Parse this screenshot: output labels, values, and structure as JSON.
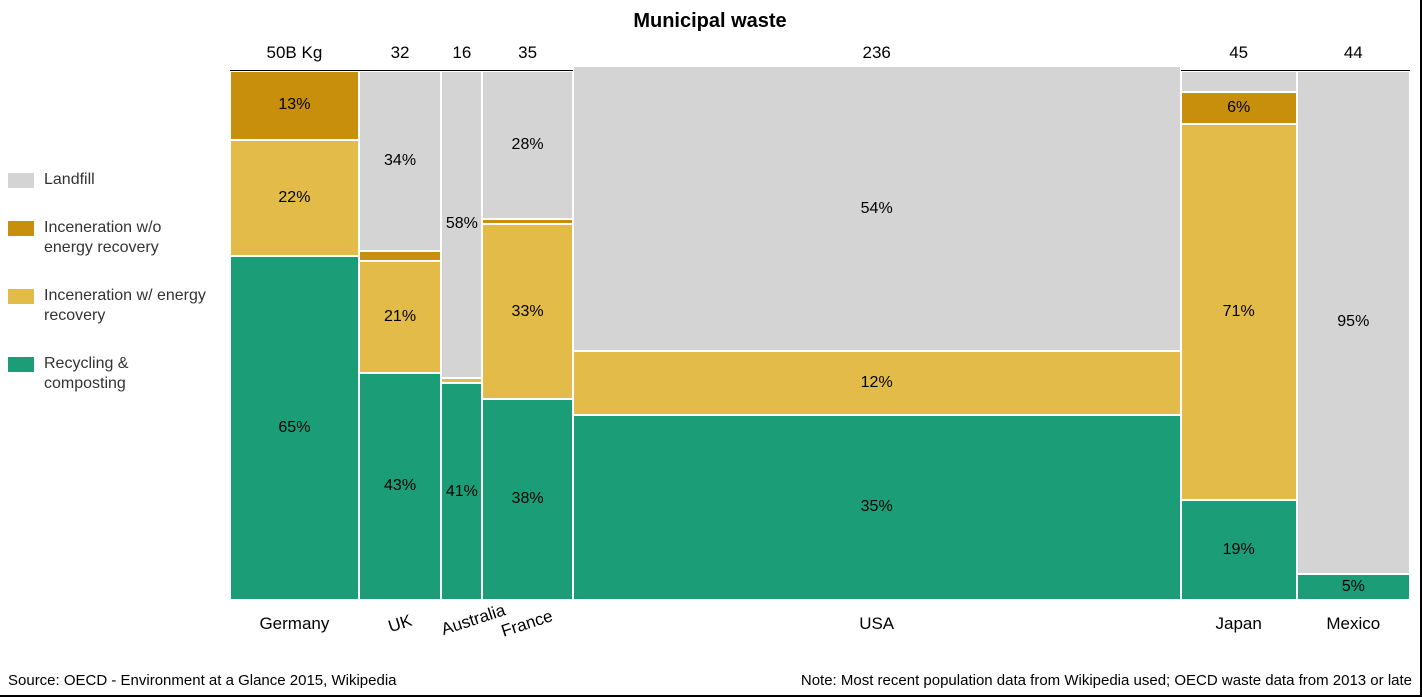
{
  "title": "Municipal waste",
  "colors": {
    "landfill": "#d4d4d4",
    "incin_no_recovery": "#c78f0c",
    "incin_recovery": "#e3bb48",
    "recycling": "#1b9e77",
    "text": "#000000",
    "background": "#ffffff"
  },
  "chart": {
    "type": "marimekko",
    "unit_label_first": "50B Kg",
    "total_width_value": 458,
    "segment_order_top_to_bottom": [
      "incin_no_recovery",
      "landfill",
      "incin_recovery",
      "recycling"
    ],
    "countries": [
      {
        "name": "Germany",
        "width_value": 50,
        "top_label": "50B Kg",
        "segments": {
          "landfill": 0,
          "incin_no_recovery": 13,
          "incin_recovery": 22,
          "recycling": 65
        },
        "labels": {
          "incin_no_recovery": "13%",
          "incin_recovery": "22%",
          "recycling": "65%"
        }
      },
      {
        "name": "UK",
        "width_value": 32,
        "top_label": "32",
        "segments": {
          "landfill": 34,
          "incin_no_recovery": 2,
          "incin_recovery": 21,
          "recycling": 43
        },
        "labels": {
          "landfill": "34%",
          "incin_recovery": "21%",
          "recycling": "43%"
        }
      },
      {
        "name": "Australia",
        "width_value": 16,
        "top_label": "16",
        "label_rotate": true,
        "segments": {
          "landfill": 58,
          "incin_no_recovery": 0,
          "incin_recovery": 1,
          "recycling": 41
        },
        "labels": {
          "landfill": "58%",
          "recycling": "41%"
        }
      },
      {
        "name": "France",
        "width_value": 35,
        "top_label": "35",
        "segments": {
          "landfill": 28,
          "incin_no_recovery": 1,
          "incin_recovery": 33,
          "recycling": 38
        },
        "labels": {
          "landfill": "28%",
          "incin_recovery": "33%",
          "recycling": "38%"
        }
      },
      {
        "name": "USA",
        "width_value": 236,
        "top_label": "236",
        "segments": {
          "landfill": 54,
          "incin_no_recovery": 0,
          "incin_recovery": 12,
          "recycling": 35
        },
        "labels": {
          "landfill": "54%",
          "incin_recovery": "12%",
          "recycling": "35%"
        }
      },
      {
        "name": "Japan",
        "width_value": 45,
        "top_label": "45",
        "segments": {
          "landfill": 4,
          "incin_no_recovery": 6,
          "incin_recovery": 71,
          "recycling": 19
        },
        "labels": {
          "incin_no_recovery": "6%",
          "incin_recovery": "71%",
          "recycling": "19%"
        }
      },
      {
        "name": "Mexico",
        "width_value": 44,
        "top_label": "44",
        "segments": {
          "landfill": 95,
          "incin_no_recovery": 0,
          "incin_recovery": 0,
          "recycling": 5
        },
        "labels": {
          "landfill": "95%",
          "recycling": "5%"
        }
      }
    ]
  },
  "legend": [
    {
      "key": "landfill",
      "label": "Landfill"
    },
    {
      "key": "incin_no_recovery",
      "label": "Inceneration w/o energy recovery"
    },
    {
      "key": "incin_recovery",
      "label": "Inceneration w/ energy recovery"
    },
    {
      "key": "recycling",
      "label": "Recycling & composting"
    }
  ],
  "footer": {
    "source": "Source: OECD - Environment at a Glance 2015, Wikipedia",
    "note": "Note: Most recent population data from Wikipedia used; OECD waste data from 2013 or late"
  },
  "typography": {
    "title_fontsize": 20,
    "label_fontsize": 17,
    "segment_fontsize": 16,
    "footer_fontsize": 15
  }
}
